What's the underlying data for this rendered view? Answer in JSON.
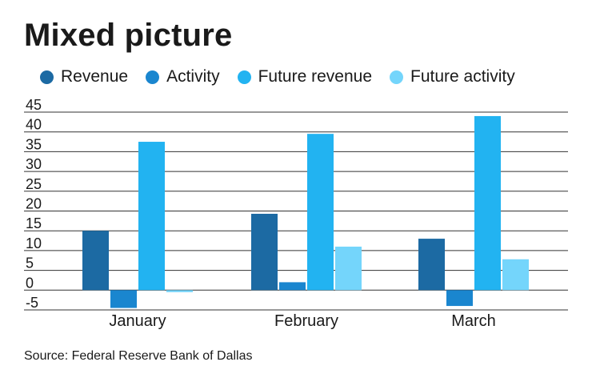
{
  "chart_data": {
    "type": "bar",
    "title": "Mixed picture",
    "source": "Source: Federal Reserve Bank of Dallas",
    "categories": [
      "January",
      "February",
      "March"
    ],
    "series": [
      {
        "name": "Revenue",
        "color": "#1c6aa3",
        "values": [
          15,
          19.3,
          13
        ]
      },
      {
        "name": "Activity",
        "color": "#1a86cf",
        "values": [
          -4.5,
          2,
          -4
        ]
      },
      {
        "name": "Future revenue",
        "color": "#22b3f1",
        "values": [
          37.5,
          39.5,
          44
        ]
      },
      {
        "name": "Future activity",
        "color": "#74d5fb",
        "values": [
          -0.5,
          11,
          7.8
        ]
      }
    ],
    "yticks": [
      "45",
      "40",
      "35",
      "30",
      "25",
      "20",
      "15",
      "10",
      "5",
      "0",
      "-5"
    ],
    "ylim": [
      -5,
      45
    ],
    "grid": true,
    "legend_position": "top"
  }
}
